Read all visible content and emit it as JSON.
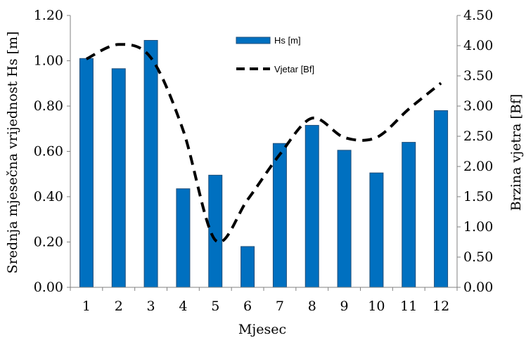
{
  "chart_data": {
    "type": "bar",
    "categories": [
      "1",
      "2",
      "3",
      "4",
      "5",
      "6",
      "7",
      "8",
      "9",
      "10",
      "11",
      "12"
    ],
    "series": [
      {
        "name": "Hs [m]",
        "kind": "bar",
        "axis": "left",
        "color": "#0070C0",
        "values": [
          1.01,
          0.965,
          1.09,
          0.435,
          0.495,
          0.18,
          0.635,
          0.715,
          0.605,
          0.505,
          0.64,
          0.78
        ]
      },
      {
        "name": "Vjetar [Bf]",
        "kind": "line",
        "style": "dashed",
        "axis": "right",
        "color": "#000000",
        "values": [
          3.78,
          4.02,
          3.8,
          2.6,
          0.78,
          1.45,
          2.2,
          2.8,
          2.48,
          2.48,
          2.95,
          3.38
        ]
      }
    ],
    "xlabel": "Mjesec",
    "ylabel": "Srednja mjesečna vrijednost Hs [m]",
    "y2label": "Brzina vjetra [Bf]",
    "ylim": [
      0,
      1.2
    ],
    "y2lim": [
      0,
      4.5
    ],
    "yticks": [
      "0.00",
      "0.20",
      "0.40",
      "0.60",
      "0.80",
      "1.00",
      "1.20"
    ],
    "y2ticks": [
      "0.00",
      "0.50",
      "1.00",
      "1.50",
      "2.00",
      "2.50",
      "3.00",
      "3.50",
      "4.00",
      "4.50"
    ],
    "grid": false,
    "legend_position": "top-center"
  }
}
